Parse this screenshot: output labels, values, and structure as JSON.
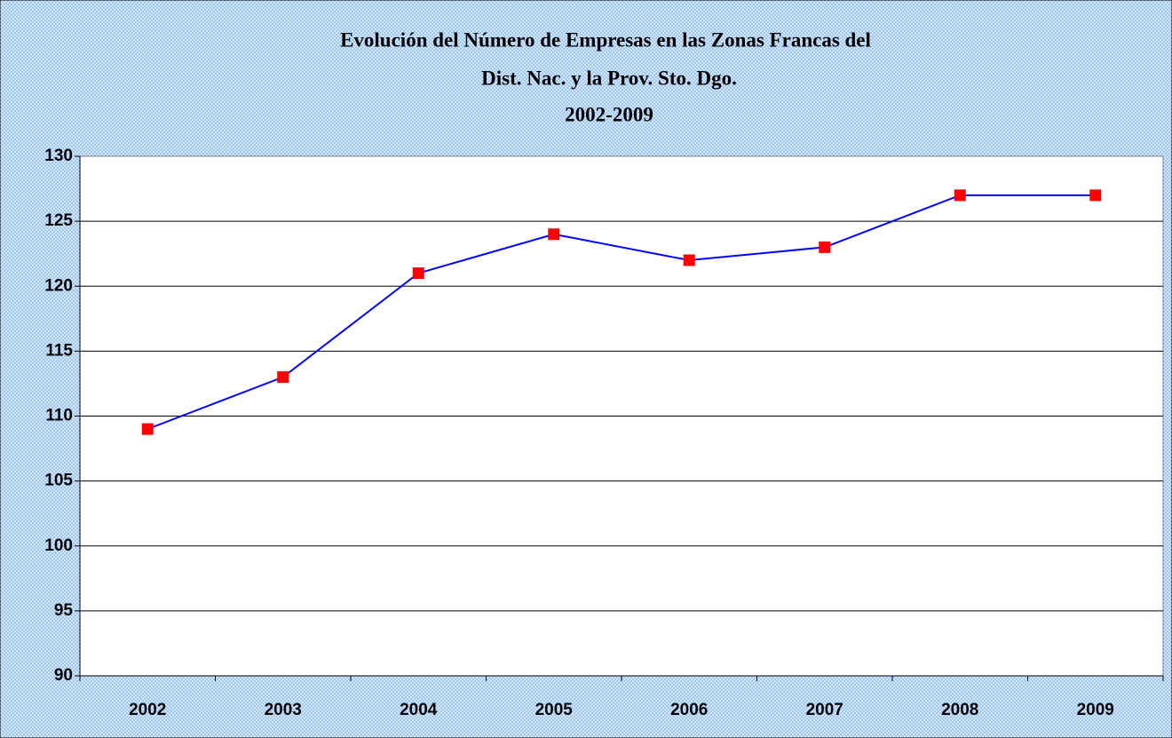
{
  "chart_data": {
    "type": "line",
    "title": [
      "Evolución del Número de Empresas en las Zonas Francas del",
      "Dist. Nac. y la Prov. Sto. Dgo.",
      "2002-2009"
    ],
    "categories": [
      "2002",
      "2003",
      "2004",
      "2005",
      "2006",
      "2007",
      "2008",
      "2009"
    ],
    "series": [
      {
        "color": "#0000ff",
        "marker_color": "#ff0000",
        "values": [
          109,
          113,
          121,
          124,
          122,
          123,
          127,
          127
        ]
      }
    ],
    "ylim": [
      90,
      130
    ],
    "yticks": [
      90,
      95,
      100,
      105,
      110,
      115,
      120,
      125,
      130
    ],
    "grid": true
  }
}
